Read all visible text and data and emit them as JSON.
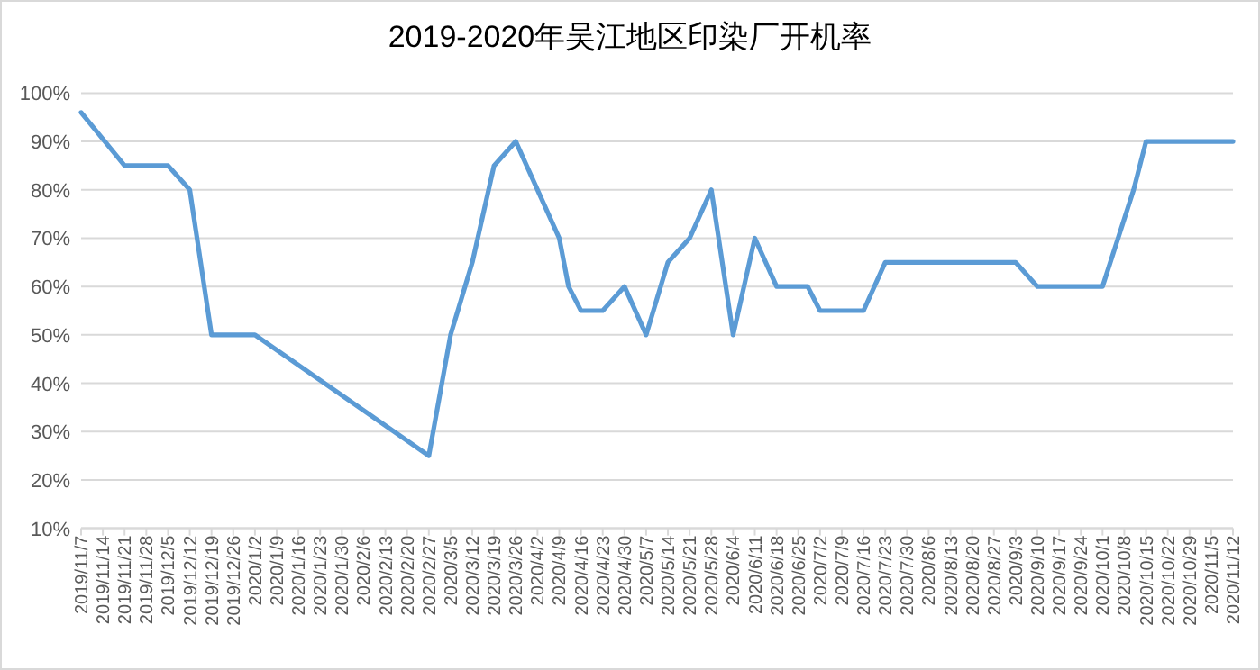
{
  "chart_data": {
    "type": "line",
    "title": "2019-2020年吴江地区印染厂开机率",
    "x": [
      "2019-11-07",
      "2019-11-21",
      "2019-12-05",
      "2019-12-12",
      "2019-12-19",
      "2020-01-02",
      "2020-02-27",
      "2020-03-05",
      "2020-03-12",
      "2020-03-19",
      "2020-03-26",
      "2020-04-09",
      "2020-04-12",
      "2020-04-16",
      "2020-04-23",
      "2020-04-30",
      "2020-05-07",
      "2020-05-14",
      "2020-05-21",
      "2020-05-28",
      "2020-06-04",
      "2020-06-11",
      "2020-06-18",
      "2020-06-28",
      "2020-07-02",
      "2020-07-16",
      "2020-07-23",
      "2020-09-03",
      "2020-09-10",
      "2020-10-01",
      "2020-10-11",
      "2020-10-15",
      "2020-11-12"
    ],
    "series": [
      {
        "color": "#5b9bd5",
        "values": [
          96,
          85,
          85,
          80,
          50,
          50,
          25,
          50,
          65,
          85,
          90,
          70,
          60,
          55,
          55,
          60,
          50,
          65,
          70,
          80,
          50,
          70,
          60,
          60,
          55,
          55,
          65,
          65,
          60,
          60,
          80,
          90,
          90
        ]
      }
    ],
    "xlim": [
      "2019-11-07",
      "2020-11-12"
    ],
    "xticks": [
      {
        "value": "2019-11-07",
        "label": "2019/11/7"
      },
      {
        "value": "2019-11-14",
        "label": "2019/11/14"
      },
      {
        "value": "2019-11-21",
        "label": "2019/11/21"
      },
      {
        "value": "2019-11-28",
        "label": "2019/11/28"
      },
      {
        "value": "2019-12-05",
        "label": "2019/12/5"
      },
      {
        "value": "2019-12-12",
        "label": "2019/12/12"
      },
      {
        "value": "2019-12-19",
        "label": "2019/12/19"
      },
      {
        "value": "2019-12-26",
        "label": "2019/12/26"
      },
      {
        "value": "2020-01-02",
        "label": "2020/1/2"
      },
      {
        "value": "2020-01-09",
        "label": "2020/1/9"
      },
      {
        "value": "2020-01-16",
        "label": "2020/1/16"
      },
      {
        "value": "2020-01-23",
        "label": "2020/1/23"
      },
      {
        "value": "2020-01-30",
        "label": "2020/1/30"
      },
      {
        "value": "2020-02-06",
        "label": "2020/2/6"
      },
      {
        "value": "2020-02-13",
        "label": "2020/2/13"
      },
      {
        "value": "2020-02-20",
        "label": "2020/2/20"
      },
      {
        "value": "2020-02-27",
        "label": "2020/2/27"
      },
      {
        "value": "2020-03-05",
        "label": "2020/3/5"
      },
      {
        "value": "2020-03-12",
        "label": "2020/3/12"
      },
      {
        "value": "2020-03-19",
        "label": "2020/3/19"
      },
      {
        "value": "2020-03-26",
        "label": "2020/3/26"
      },
      {
        "value": "2020-04-02",
        "label": "2020/4/2"
      },
      {
        "value": "2020-04-09",
        "label": "2020/4/9"
      },
      {
        "value": "2020-04-16",
        "label": "2020/4/16"
      },
      {
        "value": "2020-04-23",
        "label": "2020/4/23"
      },
      {
        "value": "2020-04-30",
        "label": "2020/4/30"
      },
      {
        "value": "2020-05-07",
        "label": "2020/5/7"
      },
      {
        "value": "2020-05-14",
        "label": "2020/5/14"
      },
      {
        "value": "2020-05-21",
        "label": "2020/5/21"
      },
      {
        "value": "2020-05-28",
        "label": "2020/5/28"
      },
      {
        "value": "2020-06-04",
        "label": "2020/6/4"
      },
      {
        "value": "2020-06-11",
        "label": "2020/6/11"
      },
      {
        "value": "2020-06-18",
        "label": "2020/6/18"
      },
      {
        "value": "2020-06-25",
        "label": "2020/6/25"
      },
      {
        "value": "2020-07-02",
        "label": "2020/7/2"
      },
      {
        "value": "2020-07-09",
        "label": "2020/7/9"
      },
      {
        "value": "2020-07-16",
        "label": "2020/7/16"
      },
      {
        "value": "2020-07-23",
        "label": "2020/7/23"
      },
      {
        "value": "2020-07-30",
        "label": "2020/7/30"
      },
      {
        "value": "2020-08-06",
        "label": "2020/8/6"
      },
      {
        "value": "2020-08-13",
        "label": "2020/8/13"
      },
      {
        "value": "2020-08-20",
        "label": "2020/8/20"
      },
      {
        "value": "2020-08-27",
        "label": "2020/8/27"
      },
      {
        "value": "2020-09-03",
        "label": "2020/9/3"
      },
      {
        "value": "2020-09-10",
        "label": "2020/9/10"
      },
      {
        "value": "2020-09-17",
        "label": "2020/9/17"
      },
      {
        "value": "2020-09-24",
        "label": "2020/9/24"
      },
      {
        "value": "2020-10-01",
        "label": "2020/10/1"
      },
      {
        "value": "2020-10-08",
        "label": "2020/10/8"
      },
      {
        "value": "2020-10-15",
        "label": "2020/10/15"
      },
      {
        "value": "2020-10-22",
        "label": "2020/10/22"
      },
      {
        "value": "2020-10-29",
        "label": "2020/10/29"
      },
      {
        "value": "2020-11-05",
        "label": "2020/11/5"
      },
      {
        "value": "2020-11-12",
        "label": "2020/11/12"
      }
    ],
    "ylim": [
      10,
      100
    ],
    "yticks": [
      {
        "value": 10,
        "label": "10%"
      },
      {
        "value": 20,
        "label": "20%"
      },
      {
        "value": 30,
        "label": "30%"
      },
      {
        "value": 40,
        "label": "40%"
      },
      {
        "value": 50,
        "label": "50%"
      },
      {
        "value": 60,
        "label": "60%"
      },
      {
        "value": 70,
        "label": "70%"
      },
      {
        "value": 80,
        "label": "80%"
      },
      {
        "value": 90,
        "label": "90%"
      },
      {
        "value": 100,
        "label": "100%"
      }
    ],
    "grid": "y",
    "marker": "none",
    "line_style": "solid"
  }
}
